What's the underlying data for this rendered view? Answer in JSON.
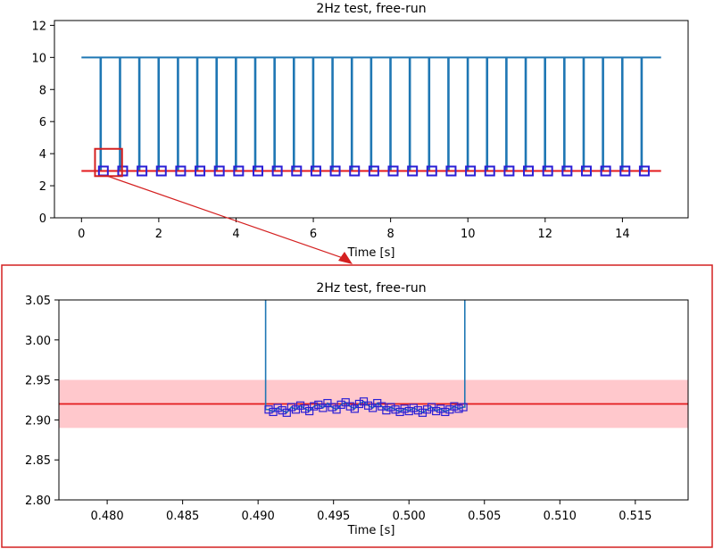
{
  "colors": {
    "signal": "#1f77b4",
    "marker": "#2b1fd6",
    "reference": "#e31a1c",
    "band": "#ffc8cc",
    "frame": "#d42020"
  },
  "chart_data": [
    {
      "type": "line",
      "title": "2Hz test, free-run",
      "xlabel": "Time [s]",
      "ylabel": "",
      "xlim": [
        -0.7,
        15.7
      ],
      "ylim": [
        0,
        12.3
      ],
      "xticks": [
        0,
        2,
        4,
        6,
        8,
        10,
        12,
        14
      ],
      "yticks": [
        0,
        2,
        4,
        6,
        8,
        10,
        12
      ],
      "high_level": 10.0,
      "low_level": 2.92,
      "reference_line": 2.92,
      "low_segments": [
        [
          0.49,
          0.504
        ],
        [
          0.99,
          1.004
        ],
        [
          1.49,
          1.504
        ],
        [
          1.99,
          2.004
        ],
        [
          2.49,
          2.504
        ],
        [
          2.99,
          3.004
        ],
        [
          3.49,
          3.504
        ],
        [
          3.99,
          4.004
        ],
        [
          4.49,
          4.504
        ],
        [
          4.99,
          5.004
        ],
        [
          5.49,
          5.504
        ],
        [
          5.99,
          6.004
        ],
        [
          6.49,
          6.504
        ],
        [
          6.99,
          7.004
        ],
        [
          7.49,
          7.504
        ],
        [
          7.99,
          8.004
        ],
        [
          8.49,
          8.504
        ],
        [
          8.99,
          9.004
        ],
        [
          9.49,
          9.504
        ],
        [
          9.99,
          10.004
        ],
        [
          10.49,
          10.504
        ],
        [
          10.99,
          11.004
        ],
        [
          11.49,
          11.504
        ],
        [
          11.99,
          12.004
        ],
        [
          12.49,
          12.504
        ],
        [
          12.99,
          13.004
        ],
        [
          13.49,
          13.504
        ],
        [
          13.99,
          14.004
        ],
        [
          14.49,
          14.504
        ]
      ],
      "signal_start": 0.0,
      "signal_end": 15.0,
      "zoom_box": {
        "x": [
          0.35,
          1.05
        ],
        "y": [
          2.6,
          4.3
        ]
      }
    },
    {
      "type": "line",
      "title": "2Hz test, free-run",
      "xlabel": "Time [s]",
      "ylabel": "",
      "xlim": [
        0.4768,
        0.5185
      ],
      "ylim": [
        2.8,
        3.05
      ],
      "xticks": [
        0.48,
        0.485,
        0.49,
        0.495,
        0.5,
        0.505,
        0.51,
        0.515
      ],
      "xtick_labels": [
        "0.480",
        "0.485",
        "0.490",
        "0.495",
        "0.500",
        "0.505",
        "0.510",
        "0.515"
      ],
      "yticks": [
        2.8,
        2.85,
        2.9,
        2.95,
        3.0,
        3.05
      ],
      "ytick_labels": [
        "2.80",
        "2.85",
        "2.90",
        "2.95",
        "3.00",
        "3.05"
      ],
      "reference_line": 2.92,
      "tolerance_band": [
        2.89,
        2.95
      ],
      "edge_times": [
        0.4905,
        0.5037
      ],
      "samples": [
        [
          0.4907,
          2.913
        ],
        [
          0.491,
          2.91
        ],
        [
          0.4913,
          2.915
        ],
        [
          0.4916,
          2.912
        ],
        [
          0.4919,
          2.909
        ],
        [
          0.4922,
          2.916
        ],
        [
          0.4925,
          2.913
        ],
        [
          0.4928,
          2.918
        ],
        [
          0.4931,
          2.914
        ],
        [
          0.4934,
          2.911
        ],
        [
          0.4937,
          2.917
        ],
        [
          0.494,
          2.919
        ],
        [
          0.4943,
          2.915
        ],
        [
          0.4946,
          2.921
        ],
        [
          0.4949,
          2.916
        ],
        [
          0.4952,
          2.913
        ],
        [
          0.4955,
          2.919
        ],
        [
          0.4958,
          2.922
        ],
        [
          0.4961,
          2.917
        ],
        [
          0.4964,
          2.914
        ],
        [
          0.4967,
          2.92
        ],
        [
          0.497,
          2.923
        ],
        [
          0.4973,
          2.918
        ],
        [
          0.4976,
          2.915
        ],
        [
          0.4979,
          2.921
        ],
        [
          0.4982,
          2.917
        ],
        [
          0.4985,
          2.912
        ],
        [
          0.4988,
          2.916
        ],
        [
          0.4991,
          2.913
        ],
        [
          0.4994,
          2.91
        ],
        [
          0.4997,
          2.914
        ],
        [
          0.5,
          2.911
        ],
        [
          0.5003,
          2.915
        ],
        [
          0.5006,
          2.912
        ],
        [
          0.5009,
          2.909
        ],
        [
          0.5012,
          2.913
        ],
        [
          0.5015,
          2.916
        ],
        [
          0.5018,
          2.911
        ],
        [
          0.5021,
          2.914
        ],
        [
          0.5024,
          2.91
        ],
        [
          0.5027,
          2.913
        ],
        [
          0.503,
          2.917
        ],
        [
          0.5033,
          2.914
        ],
        [
          0.5036,
          2.916
        ]
      ]
    }
  ]
}
